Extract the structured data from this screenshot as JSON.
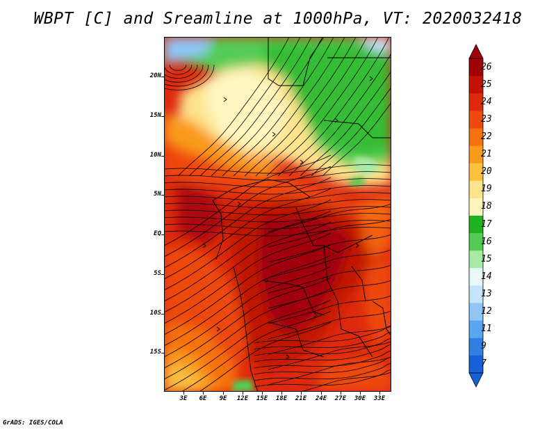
{
  "title": "WBPT [C] and Sreamline at 1000hPa, VT: 2020032418",
  "footer": "GrADS: IGES/COLA",
  "map": {
    "lat_labels": [
      "20N",
      "15N",
      "10N",
      "5N",
      "EQ",
      "5S",
      "10S",
      "15S"
    ],
    "lon_labels": [
      "3E",
      "6E",
      "9E",
      "12E",
      "15E",
      "18E",
      "21E",
      "24E",
      "27E",
      "30E",
      "33E"
    ]
  },
  "colorbar": {
    "levels": [
      "26",
      "25",
      "24",
      "23",
      "22",
      "21",
      "20",
      "19",
      "18",
      "17",
      "16",
      "15",
      "14",
      "13",
      "12",
      "11",
      "9",
      "7"
    ],
    "colors": [
      "#a0000a",
      "#c11205",
      "#dd2a0c",
      "#ee4a0e",
      "#f7710f",
      "#fa9a1a",
      "#fcbf3e",
      "#fde38c",
      "#fff5bf",
      "#1fb21f",
      "#54cc54",
      "#a7eba7",
      "#e8f8f8",
      "#c4e4fa",
      "#8fc6f4",
      "#5aa6ee",
      "#327fe3",
      "#1561d8"
    ]
  }
}
